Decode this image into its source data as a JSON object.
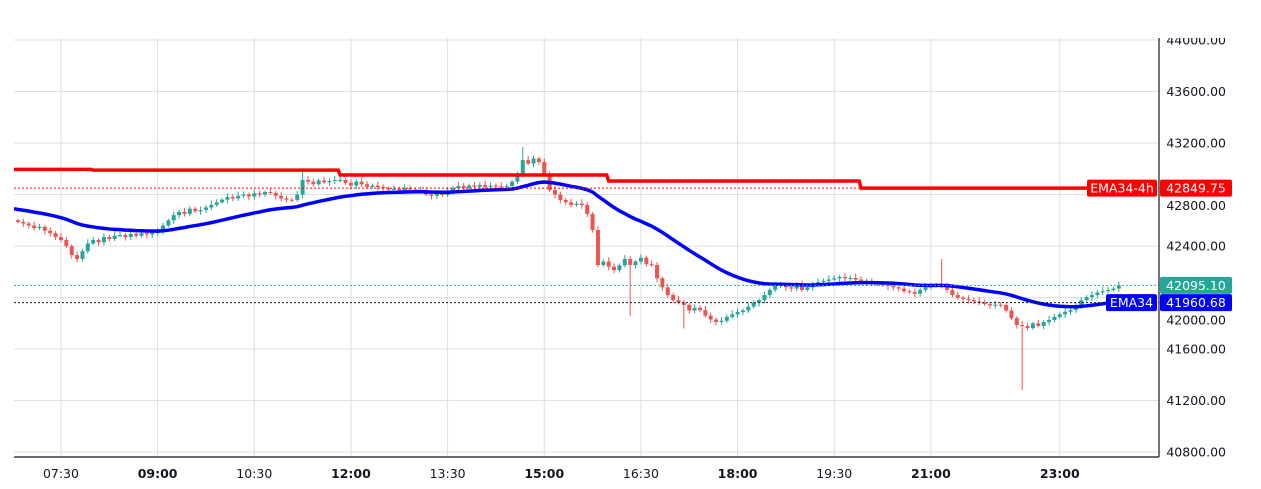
{
  "chart_data": {
    "type": "candlestick",
    "title": "",
    "interval_minutes": 5,
    "start_time": "06:50",
    "first_open": 42600,
    "closes": [
      42587,
      42575,
      42560,
      42540,
      42550,
      42520,
      42500,
      42470,
      42447,
      42400,
      42330,
      42300,
      42360,
      42420,
      42447,
      42430,
      42470,
      42455,
      42480,
      42486,
      42470,
      42495,
      42480,
      42500,
      42490,
      42505,
      42509,
      42560,
      42600,
      42640,
      42665,
      42650,
      42690,
      42670,
      42680,
      42700,
      42720,
      42740,
      42760,
      42781,
      42770,
      42790,
      42800,
      42785,
      42810,
      42800,
      42820,
      42812,
      42790,
      42770,
      42760,
      42758,
      42800,
      42913,
      42900,
      42880,
      42910,
      42895,
      42905,
      42913,
      42913,
      42890,
      42870,
      42900,
      42880,
      42860,
      42870,
      42859,
      42850,
      42840,
      42845,
      42830,
      42850,
      42840,
      42830,
      42835,
      42800,
      42790,
      42810,
      42797,
      42830,
      42850,
      42866,
      42850,
      42870,
      42860,
      42875,
      42860,
      42870,
      42865,
      42860,
      42866,
      42900,
      42952,
      43068,
      43040,
      43080,
      43053,
      42960,
      42835,
      42800,
      42758,
      42740,
      42720,
      42730,
      42719,
      42650,
      42525,
      42253,
      42280,
      42240,
      42214,
      42250,
      42300,
      42253,
      42280,
      42310,
      42260,
      42253,
      42150,
      42080,
      42020,
      41980,
      41960,
      41943,
      41900,
      41920,
      41903,
      41860,
      41830,
      41810,
      41820,
      41850,
      41870,
      41888,
      41900,
      41930,
      41960,
      41981,
      42020,
      42060,
      42090,
      42100,
      42080,
      42070,
      42100,
      42059,
      42080,
      42110,
      42121,
      42130,
      42140,
      42150,
      42160,
      42150,
      42152,
      42140,
      42130,
      42120,
      42110,
      42105,
      42098,
      42090,
      42080,
      42070,
      42050,
      42043,
      42030,
      42060,
      42080,
      42090,
      42100,
      42098,
      42060,
      42020,
      42000,
      41990,
      41981,
      41970,
      41960,
      41950,
      41940,
      41945,
      41943,
      41900,
      41840,
      41787,
      41780,
      41764,
      41800,
      41780,
      41810,
      41826,
      41850,
      41870,
      41890,
      41903,
      41930,
      41980,
      42004,
      42020,
      42040,
      42050,
      42059,
      42070,
      42095
    ],
    "extreme_wicks": {
      "53": [
        43000,
        null
      ],
      "94": [
        43169,
        null
      ],
      "114": [
        null,
        41857
      ],
      "172": [
        42300,
        null
      ],
      "187": [
        null,
        41283
      ],
      "124": [
        null,
        41760
      ]
    },
    "ema_seed": 42690,
    "series": [
      {
        "name": "EMA34",
        "color": "#0000ff",
        "last_value": "41960.68"
      },
      {
        "name": "EMA34-4h",
        "color": "#ff0000",
        "last_value": "42849.75",
        "steps": [
          [
            0,
            42996
          ],
          [
            14,
            42990
          ],
          [
            60,
            42952
          ],
          [
            110,
            42905
          ],
          [
            157,
            42850
          ]
        ]
      }
    ],
    "last_price": "42095.10",
    "last_price_color": "#26a69a",
    "up_color": "#26a69a",
    "down_color": "#ef5350",
    "ylim": [
      40800,
      44000
    ],
    "y_ticks": [
      "44000.00",
      "43600.00",
      "43200.00",
      "42800.00",
      "42400.00",
      "42000.00",
      "41600.00",
      "41200.00",
      "40800.00"
    ],
    "x_ticks": [
      {
        "label": "07:30",
        "minutes_from_start": 40,
        "bold": false
      },
      {
        "label": "09:00",
        "minutes_from_start": 130,
        "bold": true
      },
      {
        "label": "10:30",
        "minutes_from_start": 220,
        "bold": false
      },
      {
        "label": "12:00",
        "minutes_from_start": 310,
        "bold": true
      },
      {
        "label": "13:30",
        "minutes_from_start": 400,
        "bold": false
      },
      {
        "label": "15:00",
        "minutes_from_start": 490,
        "bold": true
      },
      {
        "label": "16:30",
        "minutes_from_start": 580,
        "bold": false
      },
      {
        "label": "18:00",
        "minutes_from_start": 670,
        "bold": true
      },
      {
        "label": "19:30",
        "minutes_from_start": 760,
        "bold": false
      },
      {
        "label": "21:00",
        "minutes_from_start": 850,
        "bold": true
      },
      {
        "label": "23:00",
        "minutes_from_start": 970,
        "bold": true
      }
    ],
    "grid": true
  }
}
